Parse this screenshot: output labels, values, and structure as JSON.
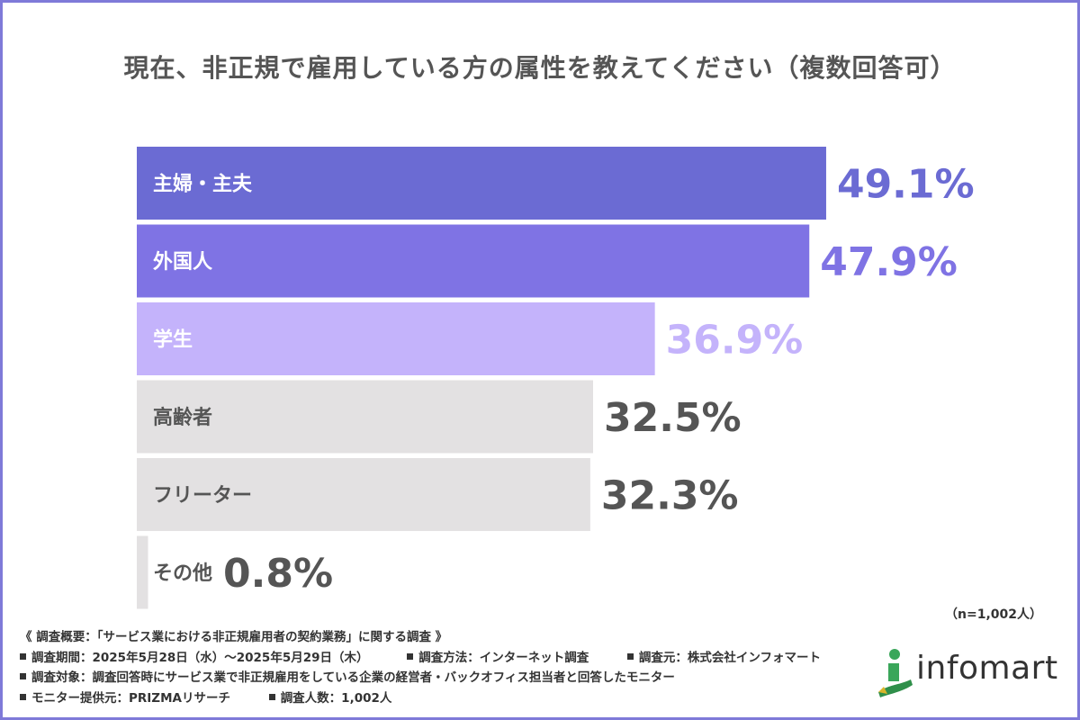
{
  "title": "現在、非正規で雇用している方の属性を教えてください（複数回答可）",
  "chart_data": {
    "type": "bar",
    "orientation": "horizontal",
    "title": "現在、非正規で雇用している方の属性を教えてください（複数回答可）",
    "categories": [
      "主婦・主夫",
      "外国人",
      "学生",
      "高齢者",
      "フリーター",
      "その他"
    ],
    "values": [
      49.1,
      47.9,
      36.9,
      32.5,
      32.3,
      0.8
    ],
    "value_labels": [
      "49.1%",
      "47.9%",
      "36.9%",
      "32.5%",
      "32.3%",
      "0.8%"
    ],
    "unit": "%",
    "bar_colors": [
      "#6b6bd3",
      "#7f73e4",
      "#c4b3fb",
      "#e3e1e2",
      "#e3e1e2",
      "#e3e1e2"
    ],
    "label_colors": [
      "#ffffff",
      "#ffffff",
      "#ffffff",
      "#555555",
      "#555555",
      "#555555"
    ],
    "value_colors": [
      "#6b6bd3",
      "#7f73e4",
      "#c4b3fb",
      "#555555",
      "#555555",
      "#555555"
    ]
  },
  "sample_size": "（n=1,002人）",
  "notes": {
    "header": "《 調査概要：「サービス業における非正規雇用者の契約業務」に関する調査 》",
    "period": "調査期間：2025年5月28日（水）～2025年5月29日（木）",
    "method": "調査方法：インターネット調査",
    "source": "調査元：株式会社インフォマート",
    "target": "調査対象：調査回答時にサービス業で非正規雇用をしている企業の経営者・バックオフィス担当者と回答したモニター",
    "provider": "モニター提供元：PRIZMAリサーチ",
    "count": "調査人数：1,002人"
  },
  "logo": {
    "text": "infomart"
  }
}
